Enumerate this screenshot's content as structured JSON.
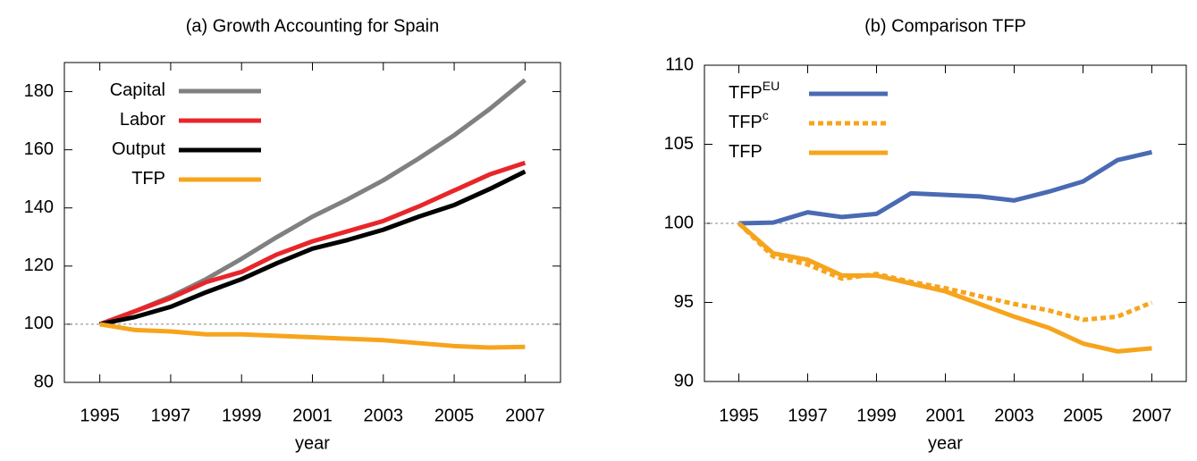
{
  "chart_data": [
    {
      "type": "line",
      "title": "(a) Growth Accounting for Spain",
      "xlabel": "year",
      "x": [
        1995,
        1996,
        1997,
        1998,
        1999,
        2000,
        2001,
        2002,
        2003,
        2004,
        2005,
        2006,
        2007
      ],
      "xlim": [
        1994,
        2008
      ],
      "xticks": [
        1995,
        1997,
        1999,
        2001,
        2003,
        2005,
        2007
      ],
      "ylim": [
        80,
        190
      ],
      "yticks": [
        80,
        100,
        120,
        140,
        160,
        180
      ],
      "hline": 100,
      "legend": "upper left",
      "series": [
        {
          "name": "Capital",
          "color": "#808080",
          "values": [
            100,
            104.5,
            109.5,
            115.5,
            122.5,
            130,
            137,
            143,
            149.5,
            157,
            165,
            174,
            184
          ]
        },
        {
          "name": "Labor",
          "color": "#e8262a",
          "values": [
            100,
            104.5,
            109,
            114.5,
            118,
            124,
            128.5,
            132,
            135.5,
            140.5,
            146,
            151.5,
            155.5
          ]
        },
        {
          "name": "Output",
          "color": "#000000",
          "values": [
            100,
            102.5,
            106,
            111,
            115.5,
            121,
            126,
            129,
            132.5,
            137,
            141,
            146.5,
            152.5
          ]
        },
        {
          "name": "TFP",
          "color": "#f7a41d",
          "values": [
            100,
            98,
            97.5,
            96.5,
            96.5,
            96,
            95.5,
            95,
            94.5,
            93.5,
            92.5,
            92,
            92.2
          ]
        }
      ]
    },
    {
      "type": "line",
      "title": "(b) Comparison TFP",
      "xlabel": "year",
      "x": [
        1995,
        1996,
        1997,
        1998,
        1999,
        2000,
        2001,
        2002,
        2003,
        2004,
        2005,
        2006,
        2007
      ],
      "xlim": [
        1994,
        2008
      ],
      "xticks": [
        1995,
        1997,
        1999,
        2001,
        2003,
        2005,
        2007
      ],
      "ylim": [
        90,
        110
      ],
      "yticks": [
        90,
        95,
        100,
        105,
        110
      ],
      "hline": 100,
      "legend": "upper left",
      "series": [
        {
          "name": "TFP",
          "superscript": "EU",
          "color": "#4a6bb3",
          "dash": false,
          "values": [
            100,
            100.05,
            100.7,
            100.4,
            100.6,
            101.9,
            101.8,
            101.7,
            101.45,
            102,
            102.65,
            104,
            104.5
          ]
        },
        {
          "name": "TFP",
          "superscript": "c",
          "color": "#f7a41d",
          "dash": true,
          "values": [
            100,
            97.9,
            97.4,
            96.5,
            96.8,
            96.3,
            95.9,
            95.4,
            94.9,
            94.5,
            93.9,
            94.1,
            95
          ]
        },
        {
          "name": "TFP",
          "color": "#f7a41d",
          "dash": false,
          "values": [
            100,
            98.1,
            97.7,
            96.7,
            96.7,
            96.2,
            95.7,
            94.9,
            94.1,
            93.4,
            92.4,
            91.9,
            92.1
          ]
        }
      ]
    }
  ]
}
